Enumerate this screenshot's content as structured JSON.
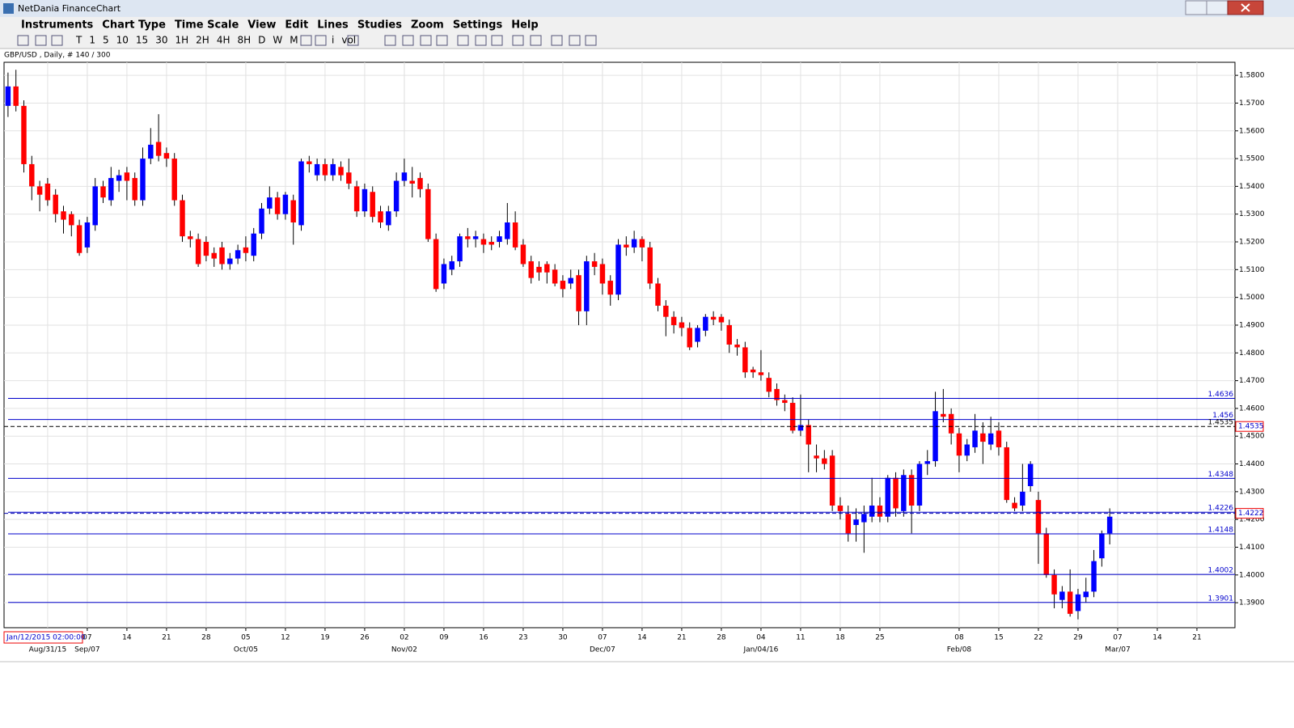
{
  "window": {
    "title": "NetDania FinanceChart"
  },
  "menu": [
    "Instruments",
    "Chart Type",
    "Time Scale",
    "View",
    "Edit",
    "Lines",
    "Studies",
    "Zoom",
    "Settings",
    "Help"
  ],
  "toolbar": [
    "T",
    "1",
    "5",
    "10",
    "15",
    "30",
    "1H",
    "2H",
    "4H",
    "8H",
    "D",
    "W",
    "M",
    "i",
    "vol"
  ],
  "date_box": "Jan/12/2015 02:00:00",
  "chart_data": {
    "type": "candlestick",
    "title": "GBP/USD , Daily, # 140 / 300",
    "up_color": "#0000ff",
    "down_color": "#ff0000",
    "level_color": "#0000cc",
    "grid": true,
    "open": [
      1.569,
      1.576,
      1.569,
      1.548,
      1.54,
      1.541,
      1.537,
      1.531,
      1.53,
      1.526,
      1.518,
      1.526,
      1.54,
      1.535,
      1.542,
      1.545,
      1.543,
      1.535,
      1.55,
      1.556,
      1.552,
      1.55,
      1.535,
      1.522,
      1.521,
      1.52,
      1.516,
      1.518,
      1.512,
      1.514,
      1.518,
      1.515,
      1.523,
      1.532,
      1.536,
      1.53,
      1.535,
      1.526,
      1.549,
      1.544,
      1.548,
      1.544,
      1.547,
      1.545,
      1.54,
      1.531,
      1.538,
      1.531,
      1.526,
      1.531,
      1.542,
      1.542,
      1.543,
      1.539,
      1.521,
      1.505,
      1.51,
      1.513,
      1.522,
      1.521,
      1.521,
      1.52,
      1.52,
      1.521,
      1.527,
      1.519,
      1.513,
      1.511,
      1.512,
      1.51,
      1.506,
      1.505,
      1.508,
      1.495,
      1.513,
      1.512,
      1.506,
      1.501,
      1.519,
      1.518,
      1.521,
      1.518,
      1.505,
      1.497,
      1.493,
      1.491,
      1.489,
      1.484,
      1.488,
      1.493,
      1.493,
      1.49,
      1.483,
      1.482,
      1.474,
      1.473,
      1.471,
      1.467,
      1.463,
      1.462,
      1.452,
      1.454,
      1.443,
      1.442,
      1.443,
      1.425,
      1.422,
      1.418,
      1.419,
      1.421,
      1.425,
      1.421,
      1.435,
      1.423,
      1.436,
      1.425,
      1.44,
      1.441,
      1.458,
      1.458,
      1.451,
      1.443,
      1.446,
      1.451,
      1.447,
      1.452,
      1.446,
      1.426,
      1.425,
      1.432,
      1.427,
      1.415,
      1.4,
      1.391,
      1.394,
      1.387,
      1.392,
      1.394,
      1.406,
      1.415
    ],
    "high": [
      1.581,
      1.582,
      1.571,
      1.551,
      1.542,
      1.543,
      1.539,
      1.533,
      1.531,
      1.528,
      1.529,
      1.543,
      1.542,
      1.547,
      1.546,
      1.547,
      1.545,
      1.554,
      1.561,
      1.566,
      1.554,
      1.552,
      1.537,
      1.524,
      1.523,
      1.522,
      1.518,
      1.52,
      1.516,
      1.519,
      1.522,
      1.525,
      1.534,
      1.54,
      1.538,
      1.538,
      1.537,
      1.55,
      1.551,
      1.55,
      1.55,
      1.55,
      1.549,
      1.55,
      1.542,
      1.541,
      1.54,
      1.533,
      1.533,
      1.545,
      1.55,
      1.547,
      1.545,
      1.541,
      1.523,
      1.514,
      1.515,
      1.523,
      1.525,
      1.524,
      1.523,
      1.522,
      1.524,
      1.534,
      1.531,
      1.521,
      1.515,
      1.513,
      1.513,
      1.512,
      1.508,
      1.51,
      1.51,
      1.515,
      1.516,
      1.514,
      1.508,
      1.521,
      1.522,
      1.524,
      1.522,
      1.52,
      1.507,
      1.499,
      1.495,
      1.493,
      1.491,
      1.49,
      1.494,
      1.495,
      1.494,
      1.492,
      1.485,
      1.484,
      1.475,
      1.481,
      1.473,
      1.469,
      1.465,
      1.464,
      1.465,
      1.456,
      1.447,
      1.445,
      1.445,
      1.428,
      1.425,
      1.424,
      1.425,
      1.435,
      1.428,
      1.436,
      1.437,
      1.438,
      1.438,
      1.441,
      1.445,
      1.466,
      1.467,
      1.46,
      1.453,
      1.449,
      1.458,
      1.455,
      1.457,
      1.455,
      1.448,
      1.428,
      1.44,
      1.441,
      1.43,
      1.417,
      1.402,
      1.396,
      1.402,
      1.395,
      1.399,
      1.409,
      1.416,
      1.424
    ],
    "low": [
      1.565,
      1.567,
      1.545,
      1.535,
      1.531,
      1.533,
      1.527,
      1.523,
      1.522,
      1.515,
      1.516,
      1.524,
      1.534,
      1.533,
      1.538,
      1.535,
      1.533,
      1.533,
      1.548,
      1.549,
      1.547,
      1.533,
      1.52,
      1.518,
      1.511,
      1.513,
      1.511,
      1.51,
      1.51,
      1.512,
      1.513,
      1.513,
      1.521,
      1.53,
      1.528,
      1.528,
      1.519,
      1.524,
      1.545,
      1.542,
      1.542,
      1.542,
      1.542,
      1.539,
      1.529,
      1.529,
      1.527,
      1.525,
      1.524,
      1.529,
      1.54,
      1.536,
      1.536,
      1.52,
      1.502,
      1.503,
      1.508,
      1.511,
      1.518,
      1.518,
      1.516,
      1.517,
      1.518,
      1.519,
      1.517,
      1.511,
      1.505,
      1.506,
      1.505,
      1.504,
      1.5,
      1.503,
      1.49,
      1.49,
      1.508,
      1.501,
      1.497,
      1.499,
      1.515,
      1.516,
      1.513,
      1.503,
      1.495,
      1.486,
      1.487,
      1.486,
      1.481,
      1.482,
      1.486,
      1.49,
      1.488,
      1.48,
      1.479,
      1.471,
      1.471,
      1.47,
      1.464,
      1.461,
      1.459,
      1.451,
      1.45,
      1.437,
      1.437,
      1.438,
      1.423,
      1.42,
      1.412,
      1.412,
      1.408,
      1.419,
      1.419,
      1.419,
      1.421,
      1.421,
      1.415,
      1.423,
      1.436,
      1.439,
      1.455,
      1.447,
      1.437,
      1.441,
      1.444,
      1.44,
      1.445,
      1.443,
      1.426,
      1.423,
      1.423,
      1.43,
      1.404,
      1.399,
      1.388,
      1.388,
      1.385,
      1.384,
      1.39,
      1.392,
      1.403,
      1.411
    ],
    "close": [
      1.576,
      1.569,
      1.548,
      1.54,
      1.537,
      1.535,
      1.53,
      1.528,
      1.526,
      1.516,
      1.527,
      1.54,
      1.536,
      1.543,
      1.544,
      1.542,
      1.535,
      1.55,
      1.555,
      1.551,
      1.55,
      1.535,
      1.522,
      1.521,
      1.512,
      1.515,
      1.514,
      1.512,
      1.514,
      1.517,
      1.516,
      1.523,
      1.532,
      1.536,
      1.53,
      1.537,
      1.527,
      1.549,
      1.548,
      1.548,
      1.544,
      1.548,
      1.544,
      1.541,
      1.531,
      1.539,
      1.529,
      1.527,
      1.531,
      1.542,
      1.545,
      1.541,
      1.539,
      1.521,
      1.503,
      1.512,
      1.513,
      1.522,
      1.521,
      1.522,
      1.519,
      1.519,
      1.522,
      1.527,
      1.518,
      1.512,
      1.507,
      1.509,
      1.509,
      1.505,
      1.503,
      1.507,
      1.495,
      1.513,
      1.511,
      1.505,
      1.501,
      1.519,
      1.518,
      1.521,
      1.518,
      1.505,
      1.497,
      1.493,
      1.49,
      1.489,
      1.482,
      1.489,
      1.493,
      1.492,
      1.491,
      1.483,
      1.482,
      1.473,
      1.473,
      1.472,
      1.466,
      1.463,
      1.462,
      1.452,
      1.454,
      1.447,
      1.442,
      1.44,
      1.425,
      1.423,
      1.415,
      1.42,
      1.422,
      1.425,
      1.421,
      1.435,
      1.424,
      1.436,
      1.425,
      1.44,
      1.441,
      1.459,
      1.457,
      1.451,
      1.443,
      1.447,
      1.452,
      1.448,
      1.451,
      1.446,
      1.427,
      1.424,
      1.43,
      1.44,
      1.415,
      1.4,
      1.393,
      1.394,
      1.386,
      1.393,
      1.394,
      1.405,
      1.415,
      1.421
    ],
    "levels": [
      1.4636,
      1.456,
      1.4348,
      1.4226,
      1.4148,
      1.4002,
      1.3901
    ],
    "dashed_lines": [
      1.4535,
      1.4222
    ],
    "ylim": [
      1.381,
      1.5847
    ],
    "yticks": [
      {
        "value": 1.39,
        "label": "1.3900"
      },
      {
        "value": 1.4,
        "label": "1.4000"
      },
      {
        "value": 1.41,
        "label": "1.4100"
      },
      {
        "value": 1.42,
        "label": "1.4200"
      },
      {
        "value": 1.43,
        "label": "1.4300"
      },
      {
        "value": 1.44,
        "label": "1.4400"
      },
      {
        "value": 1.45,
        "label": "1.4500"
      },
      {
        "value": 1.46,
        "label": "1.4600"
      },
      {
        "value": 1.47,
        "label": "1.4700"
      },
      {
        "value": 1.48,
        "label": "1.4800"
      },
      {
        "value": 1.49,
        "label": "1.4900"
      },
      {
        "value": 1.5,
        "label": "1.5000"
      },
      {
        "value": 1.51,
        "label": "1.5100"
      },
      {
        "value": 1.52,
        "label": "1.5200"
      },
      {
        "value": 1.53,
        "label": "1.5300"
      },
      {
        "value": 1.54,
        "label": "1.5400"
      },
      {
        "value": 1.55,
        "label": "1.5500"
      },
      {
        "value": 1.56,
        "label": "1.5600"
      },
      {
        "value": 1.57,
        "label": "1.5700"
      },
      {
        "value": 1.58,
        "label": "1.5800"
      }
    ],
    "xlim": [
      -0.5,
      154.8
    ],
    "xticks": [
      {
        "value": 10,
        "label": "07"
      },
      {
        "value": 15,
        "label": "14"
      },
      {
        "value": 20,
        "label": "21"
      },
      {
        "value": 25,
        "label": "28"
      },
      {
        "value": 30,
        "label": "05"
      },
      {
        "value": 35,
        "label": "12"
      },
      {
        "value": 40,
        "label": "19"
      },
      {
        "value": 45,
        "label": "26"
      },
      {
        "value": 50,
        "label": "02"
      },
      {
        "value": 55,
        "label": "09"
      },
      {
        "value": 60,
        "label": "16"
      },
      {
        "value": 65,
        "label": "23"
      },
      {
        "value": 70,
        "label": "30"
      },
      {
        "value": 75,
        "label": "07"
      },
      {
        "value": 80,
        "label": "14"
      },
      {
        "value": 85,
        "label": "21"
      },
      {
        "value": 90,
        "label": "28"
      },
      {
        "value": 95,
        "label": "04"
      },
      {
        "value": 100,
        "label": "11"
      },
      {
        "value": 105,
        "label": "18"
      },
      {
        "value": 110,
        "label": "25"
      },
      {
        "value": 120,
        "label": "08"
      },
      {
        "value": 125,
        "label": "15"
      },
      {
        "value": 130,
        "label": "22"
      },
      {
        "value": 135,
        "label": "29"
      },
      {
        "value": 140,
        "label": "07"
      },
      {
        "value": 145,
        "label": "14"
      },
      {
        "value": 150,
        "label": "21"
      }
    ],
    "xticks_major": [
      {
        "value": 5,
        "label": "Aug/31/15"
      },
      {
        "value": 10,
        "label": "Sep/07"
      },
      {
        "value": 30,
        "label": "Oct/05"
      },
      {
        "value": 50,
        "label": "Nov/02"
      },
      {
        "value": 75,
        "label": "Dec/07"
      },
      {
        "value": 95,
        "label": "Jan/04/16"
      },
      {
        "value": 120,
        "label": "Feb/08"
      },
      {
        "value": 140,
        "label": "Mar/07"
      }
    ]
  }
}
